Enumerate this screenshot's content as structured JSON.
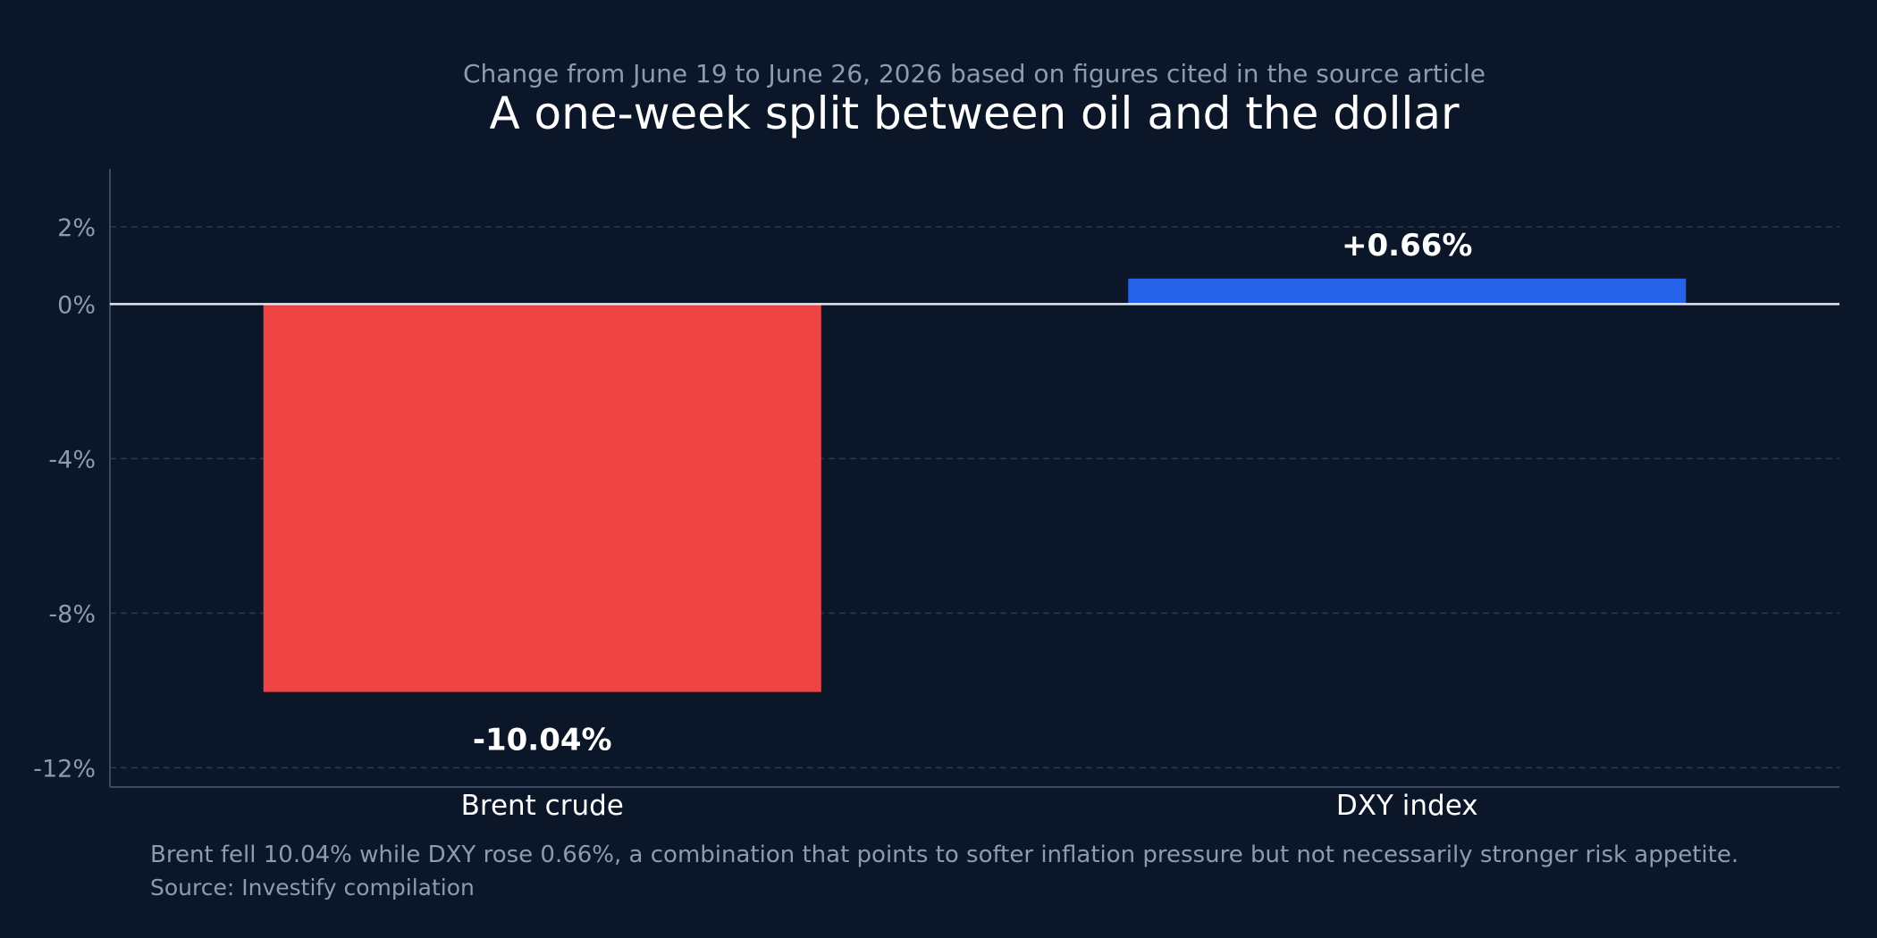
{
  "chart_data": {
    "type": "bar",
    "subtitle": "Change from June 19 to June 26, 2026 based on figures cited in the source article",
    "title": "A one-week split between oil and the dollar",
    "categories": [
      "Brent crude",
      "DXY index"
    ],
    "values": [
      -10.04,
      0.66
    ],
    "value_labels": [
      "-10.04%",
      "+0.66%"
    ],
    "colors": [
      "#ef4444",
      "#2563eb"
    ],
    "yticks": [
      2,
      0,
      -4,
      -8,
      -12
    ],
    "ytick_labels": [
      "2%",
      "0%",
      "-4%",
      "-8%",
      "-12%"
    ],
    "ylim": [
      -12.5,
      3.5
    ],
    "grid": true,
    "xlabel": "",
    "ylabel": ""
  },
  "footer": {
    "note": "Brent fell 10.04% while DXY rose 0.66%, a combination that points to softer inflation pressure but not necessarily stronger risk appetite.",
    "source": "Source: Investify compilation"
  }
}
